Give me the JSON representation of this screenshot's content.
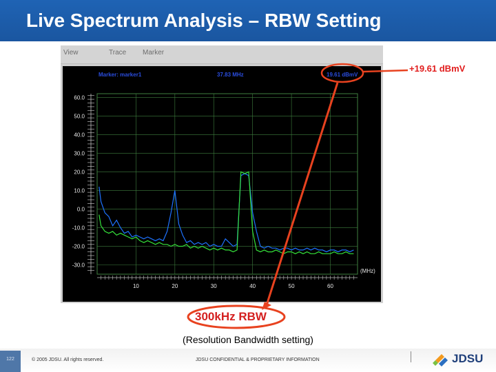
{
  "slide": {
    "title": "Live Spectrum Analysis – RBW Setting"
  },
  "analyzer": {
    "menu": [
      "View",
      "Trace",
      "Marker"
    ],
    "marker_label": "Marker: marker1",
    "marker_frequency": "37.83 MHz",
    "marker_amplitude": "19.61 dBmV",
    "y_ticks": [
      "60.0",
      "50.0",
      "40.0",
      "30.0",
      "20.0",
      "10.0",
      "0.0",
      "-10.0",
      "-20.0",
      "-30.0"
    ],
    "x_ticks": [
      "10",
      "20",
      "30",
      "40",
      "50",
      "60"
    ],
    "x_unit": "(MHz)",
    "grid_color": "#3f7f3f",
    "axis_color": "#bdbdbd"
  },
  "chart_data": {
    "type": "line",
    "xlim": [
      0,
      67
    ],
    "ylim": [
      -35,
      62
    ],
    "grid": true,
    "series": [
      {
        "color": "#1e72ff",
        "x": [
          0.5,
          1,
          2,
          3,
          4,
          5,
          6,
          7,
          8,
          9,
          10,
          11,
          12,
          13,
          14,
          15,
          16,
          17,
          18,
          19,
          20,
          21,
          22,
          23,
          24,
          25,
          26,
          27,
          28,
          29,
          30,
          31,
          32,
          33,
          34,
          35,
          36,
          37,
          38,
          39,
          40,
          41,
          42,
          43,
          44,
          45,
          46,
          47,
          48,
          49,
          50,
          51,
          52,
          53,
          54,
          55,
          56,
          57,
          58,
          59,
          60,
          61,
          62,
          63,
          64,
          65,
          66
        ],
        "y": [
          12,
          4,
          -2,
          -4,
          -9,
          -6,
          -10,
          -13,
          -12,
          -15,
          -14,
          -15,
          -16,
          -15,
          -16,
          -17,
          -16,
          -17,
          -12,
          -2,
          10,
          -8,
          -14,
          -18,
          -17,
          -19,
          -18,
          -19,
          -18,
          -20,
          -19,
          -20,
          -20,
          -16,
          -18,
          -20,
          -19,
          18,
          19,
          18,
          -2,
          -12,
          -20,
          -21,
          -20,
          -21,
          -21,
          -22,
          -21,
          -21,
          -22,
          -21,
          -22,
          -22,
          -21,
          -22,
          -21,
          -22,
          -22,
          -23,
          -22,
          -22,
          -23,
          -22,
          -22,
          -23,
          -22
        ]
      },
      {
        "color": "#35e23a",
        "x": [
          0.5,
          1,
          2,
          3,
          4,
          5,
          6,
          7,
          8,
          9,
          10,
          11,
          12,
          13,
          14,
          15,
          16,
          17,
          18,
          19,
          20,
          21,
          22,
          23,
          24,
          25,
          26,
          27,
          28,
          29,
          30,
          31,
          32,
          33,
          34,
          35,
          36,
          37,
          38,
          39,
          40,
          41,
          42,
          43,
          44,
          45,
          46,
          47,
          48,
          49,
          50,
          51,
          52,
          53,
          54,
          55,
          56,
          57,
          58,
          59,
          60,
          61,
          62,
          63,
          64,
          65,
          66
        ],
        "y": [
          -3,
          -9,
          -12,
          -13,
          -12,
          -14,
          -13,
          -14,
          -15,
          -16,
          -15,
          -17,
          -18,
          -17,
          -18,
          -19,
          -18,
          -19,
          -19,
          -20,
          -19,
          -20,
          -20,
          -19,
          -21,
          -20,
          -21,
          -20,
          -21,
          -22,
          -21,
          -22,
          -21,
          -22,
          -22,
          -23,
          -22,
          20,
          19,
          20,
          -12,
          -22,
          -23,
          -22,
          -23,
          -23,
          -22,
          -23,
          -24,
          -23,
          -23,
          -24,
          -23,
          -24,
          -23,
          -24,
          -24,
          -23,
          -24,
          -24,
          -24,
          -23,
          -24,
          -24,
          -23,
          -24,
          -24
        ]
      }
    ]
  },
  "callouts": {
    "amplitude_value": "+19.61 dBmV",
    "rbw_label": "300kHz RBW",
    "rbw_caption": "(Resolution Bandwidth setting)",
    "color": "#e8421f"
  },
  "footer": {
    "page_number": "122",
    "copyright": "© 2005 JDSU. All rights reserved.",
    "confidential": "JDSU CONFIDENTIAL & PROPRIETARY INFORMATION",
    "logo_text": "JDSU"
  }
}
